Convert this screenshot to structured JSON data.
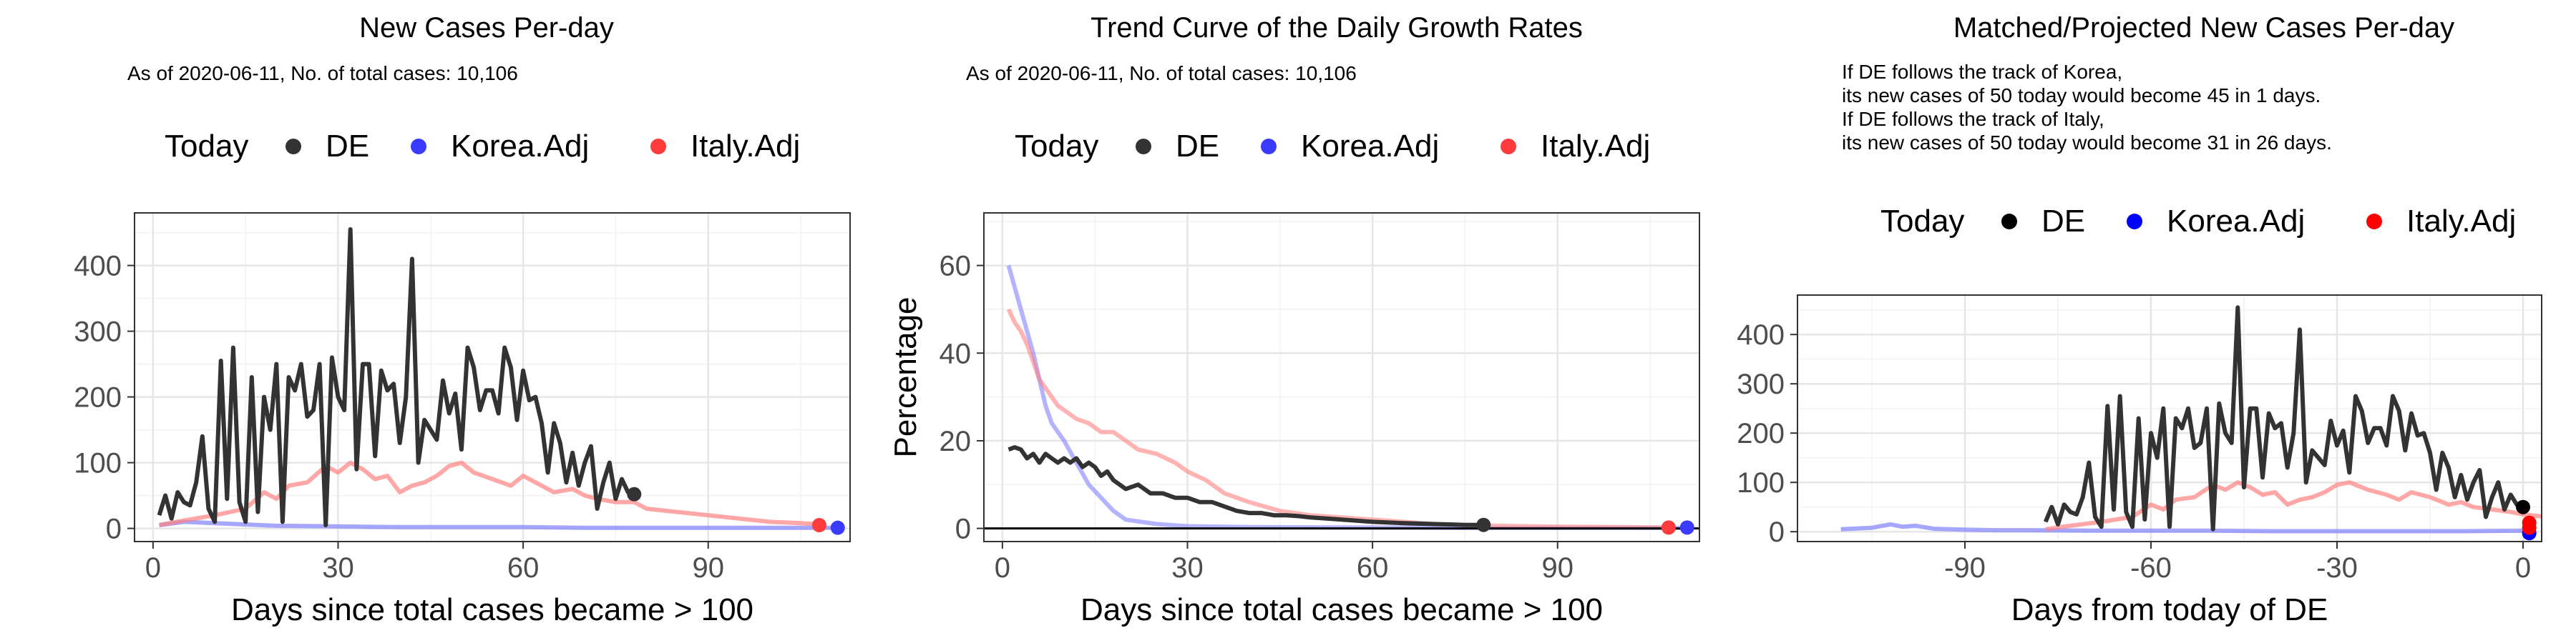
{
  "legend": {
    "title": "Today",
    "items": [
      {
        "label": "DE",
        "color": "#333333"
      },
      {
        "label": "Korea.Adj",
        "color": "#3b3bff"
      },
      {
        "label": "Italy.Adj",
        "color": "#ff3b3b"
      }
    ]
  },
  "panel3_legend_colors": [
    "#000000",
    "#0000ff",
    "#ff0000"
  ],
  "chart_data": [
    {
      "type": "line",
      "title": "New Cases Per-day",
      "subtitle": "As of 2020-06-11, No. of total cases: 10,106",
      "xlabel": "Days since total cases became > 100",
      "ylabel": "",
      "xlim": [
        -3,
        113
      ],
      "ylim": [
        -20,
        480
      ],
      "xticks": [
        0,
        30,
        60,
        90
      ],
      "yticks": [
        0,
        100,
        200,
        300,
        400
      ],
      "series": [
        {
          "name": "DE",
          "color": "#333333",
          "opacity": 1,
          "x": [
            1,
            2,
            3,
            4,
            5,
            6,
            7,
            8,
            9,
            10,
            11,
            12,
            13,
            14,
            15,
            16,
            17,
            18,
            19,
            20,
            21,
            22,
            23,
            24,
            25,
            26,
            27,
            28,
            29,
            30,
            31,
            32,
            33,
            34,
            35,
            36,
            37,
            38,
            39,
            40,
            41,
            42,
            43,
            44,
            45,
            46,
            47,
            48,
            49,
            50,
            51,
            52,
            53,
            54,
            55,
            56,
            57,
            58,
            59,
            60,
            61,
            62,
            63,
            64,
            65,
            66,
            67,
            68,
            69,
            70,
            71,
            72,
            73,
            74,
            75,
            76,
            77,
            78
          ],
          "y": [
            20,
            50,
            15,
            55,
            40,
            35,
            70,
            140,
            30,
            10,
            255,
            45,
            275,
            40,
            10,
            230,
            25,
            200,
            150,
            250,
            10,
            230,
            210,
            250,
            170,
            180,
            250,
            5,
            260,
            200,
            180,
            455,
            90,
            250,
            250,
            110,
            240,
            210,
            220,
            130,
            200,
            410,
            100,
            165,
            150,
            135,
            225,
            175,
            205,
            120,
            275,
            245,
            180,
            210,
            210,
            175,
            275,
            245,
            165,
            240,
            195,
            200,
            160,
            85,
            160,
            130,
            70,
            115,
            65,
            100,
            125,
            30,
            70,
            100,
            45,
            75,
            55,
            50
          ]
        },
        {
          "name": "Korea.Adj",
          "color": "#8080ff",
          "opacity": 0.7,
          "x": [
            1,
            5,
            10,
            15,
            20,
            30,
            40,
            50,
            60,
            70,
            80,
            90,
            100,
            110
          ],
          "y": [
            5,
            10,
            8,
            6,
            4,
            3,
            2,
            2,
            2,
            1,
            1,
            1,
            1,
            1
          ]
        },
        {
          "name": "Italy.Adj",
          "color": "#ff8080",
          "opacity": 0.7,
          "x": [
            1,
            5,
            10,
            15,
            18,
            20,
            22,
            25,
            28,
            30,
            32,
            34,
            36,
            38,
            40,
            42,
            44,
            46,
            48,
            50,
            52,
            55,
            58,
            60,
            62,
            65,
            68,
            70,
            72,
            75,
            78,
            80,
            85,
            90,
            95,
            100,
            105,
            108
          ],
          "y": [
            5,
            12,
            20,
            30,
            55,
            45,
            65,
            70,
            95,
            85,
            100,
            90,
            75,
            80,
            55,
            65,
            70,
            80,
            95,
            100,
            85,
            75,
            65,
            80,
            70,
            55,
            60,
            50,
            45,
            40,
            40,
            30,
            25,
            20,
            15,
            10,
            8,
            6
          ]
        }
      ],
      "endpoints": [
        {
          "label": "DE",
          "x": 78,
          "y": 52,
          "color": "#333333"
        },
        {
          "label": "Korea.Adj",
          "x": 111,
          "y": 1,
          "color": "#3b3bff"
        },
        {
          "label": "Italy.Adj",
          "x": 108,
          "y": 5,
          "color": "#ff3b3b"
        }
      ]
    },
    {
      "type": "line",
      "title": "Trend Curve of the Daily Growth Rates",
      "subtitle": "As of 2020-06-11, No. of total cases: 10,106",
      "xlabel": "Days since total cases became > 100",
      "ylabel": "Percentage",
      "xlim": [
        -3,
        113
      ],
      "ylim": [
        -3,
        72
      ],
      "xticks": [
        0,
        30,
        60,
        90
      ],
      "yticks": [
        0,
        20,
        40,
        60
      ],
      "series": [
        {
          "name": "DE",
          "color": "#333333",
          "opacity": 1,
          "x": [
            1,
            2,
            3,
            4,
            5,
            6,
            7,
            8,
            9,
            10,
            11,
            12,
            13,
            14,
            15,
            16,
            17,
            18,
            20,
            22,
            24,
            26,
            28,
            30,
            32,
            34,
            36,
            38,
            40,
            42,
            44,
            46,
            48,
            50,
            55,
            60,
            65,
            70,
            75,
            78
          ],
          "y": [
            18,
            18.5,
            18,
            16,
            17,
            15,
            17,
            16,
            15,
            16,
            15,
            16,
            14,
            15,
            14,
            12,
            13,
            11,
            9,
            10,
            8,
            8,
            7,
            7,
            6,
            6,
            5,
            4,
            3.5,
            3.5,
            3,
            3,
            2.8,
            2.5,
            2,
            1.5,
            1.2,
            1,
            0.8,
            0.8
          ]
        },
        {
          "name": "Korea.Adj",
          "color": "#8080ff",
          "opacity": 0.6,
          "x": [
            1,
            2,
            3,
            4,
            5,
            6,
            7,
            8,
            9,
            10,
            12,
            14,
            16,
            18,
            20,
            25,
            30,
            40,
            60,
            80,
            100,
            111
          ],
          "y": [
            60,
            55,
            50,
            45,
            40,
            34,
            28,
            24,
            22,
            20,
            15,
            10,
            7,
            4,
            2,
            1,
            0.5,
            0.3,
            0.2,
            0.1,
            0.1,
            0.1
          ]
        },
        {
          "name": "Italy.Adj",
          "color": "#ff8080",
          "opacity": 0.6,
          "x": [
            1,
            2,
            3,
            4,
            5,
            6,
            7,
            8,
            9,
            10,
            12,
            14,
            16,
            18,
            20,
            22,
            25,
            28,
            30,
            33,
            36,
            40,
            45,
            50,
            55,
            60,
            65,
            70,
            80,
            90,
            100,
            108
          ],
          "y": [
            50,
            47,
            45,
            42,
            38,
            34,
            32,
            30,
            28,
            27,
            25,
            24,
            22,
            22,
            20,
            18,
            17,
            15,
            13,
            11,
            8,
            6,
            4,
            3,
            2.5,
            2,
            1.5,
            1,
            0.6,
            0.4,
            0.3,
            0.2
          ]
        }
      ],
      "endpoints": [
        {
          "label": "DE",
          "x": 78,
          "y": 0.8,
          "color": "#333333"
        },
        {
          "label": "Korea.Adj",
          "x": 111,
          "y": 0.2,
          "color": "#3b3bff"
        },
        {
          "label": "Italy.Adj",
          "x": 108,
          "y": 0.2,
          "color": "#ff3b3b"
        }
      ]
    },
    {
      "type": "line",
      "title": "Matched/Projected New Cases Per-day",
      "subtitle_lines": [
        "If DE follows the track of Korea,",
        "its new cases of 50 today would become 45 in 1 days.",
        "If DE follows the track of Italy,",
        "its new cases of 50 today would become 31 in 26 days."
      ],
      "xlabel": "Days from today of DE",
      "ylabel": "",
      "xlim": [
        -117,
        3
      ],
      "ylim": [
        -20,
        480
      ],
      "xticks": [
        -90,
        -60,
        -30,
        0
      ],
      "yticks": [
        0,
        100,
        200,
        300,
        400
      ],
      "series": [
        {
          "name": "DE",
          "color": "#333333",
          "opacity": 1,
          "x": [
            -77,
            -76,
            -75,
            -74,
            -73,
            -72,
            -71,
            -70,
            -69,
            -68,
            -67,
            -66,
            -65,
            -64,
            -63,
            -62,
            -61,
            -60,
            -59,
            -58,
            -57,
            -56,
            -55,
            -54,
            -53,
            -52,
            -51,
            -50,
            -49,
            -48,
            -47,
            -46,
            -45,
            -44,
            -43,
            -42,
            -41,
            -40,
            -39,
            -38,
            -37,
            -36,
            -35,
            -34,
            -33,
            -32,
            -31,
            -30,
            -29,
            -28,
            -27,
            -26,
            -25,
            -24,
            -23,
            -22,
            -21,
            -20,
            -19,
            -18,
            -17,
            -16,
            -15,
            -14,
            -13,
            -12,
            -11,
            -10,
            -9,
            -8,
            -7,
            -6,
            -5,
            -4,
            -3,
            -2,
            -1,
            0
          ],
          "y": [
            20,
            50,
            15,
            55,
            40,
            35,
            70,
            140,
            30,
            10,
            255,
            45,
            275,
            40,
            10,
            230,
            25,
            200,
            150,
            250,
            10,
            230,
            210,
            250,
            170,
            180,
            250,
            5,
            260,
            200,
            180,
            455,
            90,
            250,
            250,
            110,
            240,
            210,
            220,
            130,
            200,
            410,
            100,
            165,
            150,
            135,
            225,
            175,
            205,
            120,
            275,
            245,
            180,
            210,
            210,
            175,
            275,
            245,
            165,
            240,
            195,
            200,
            160,
            85,
            160,
            130,
            70,
            115,
            65,
            100,
            125,
            30,
            70,
            100,
            45,
            75,
            55,
            50
          ]
        },
        {
          "name": "Korea.Adj",
          "color": "#8080ff",
          "opacity": 0.7,
          "x": [
            -110,
            -105,
            -102,
            -100,
            -98,
            -95,
            -90,
            -85,
            -80,
            -70,
            -60,
            -50,
            -40,
            -30,
            -20,
            -10,
            0,
            1
          ],
          "y": [
            5,
            8,
            15,
            10,
            12,
            6,
            4,
            3,
            3,
            2,
            2,
            2,
            1,
            1,
            1,
            1,
            2,
            0
          ]
        },
        {
          "name": "Italy.Adj",
          "color": "#ff8080",
          "opacity": 0.7,
          "x": [
            -77,
            -73,
            -68,
            -63,
            -60,
            -58,
            -56,
            -53,
            -50,
            -48,
            -46,
            -44,
            -42,
            -40,
            -38,
            -36,
            -34,
            -32,
            -30,
            -28,
            -25,
            -22,
            -20,
            -18,
            -15,
            -12,
            -10,
            -8,
            -5,
            -2,
            0,
            3
          ],
          "y": [
            5,
            12,
            20,
            30,
            55,
            45,
            65,
            70,
            95,
            85,
            100,
            90,
            75,
            80,
            55,
            65,
            70,
            80,
            95,
            100,
            85,
            75,
            65,
            80,
            70,
            55,
            60,
            50,
            45,
            40,
            35,
            31
          ]
        }
      ],
      "endpoints": [
        {
          "label": "DE",
          "x": 0,
          "y": 50,
          "color": "#000000"
        },
        {
          "label": "Korea.Adj",
          "x": 1,
          "y": -3,
          "color": "#0000ff"
        },
        {
          "label": "Italy.Adj",
          "x": 1,
          "y": 18,
          "color": "#ff0000"
        },
        {
          "label": "Italy.Adj",
          "x": 1,
          "y": 8,
          "color": "#ff0000"
        }
      ]
    }
  ]
}
